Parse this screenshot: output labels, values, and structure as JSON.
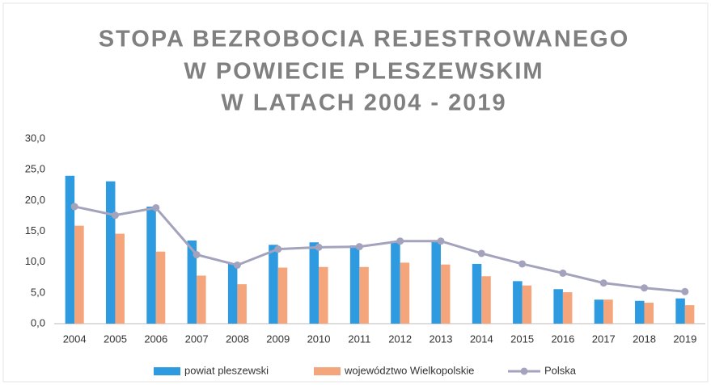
{
  "chart_data": {
    "type": "bar-line",
    "title": [
      "STOPA BEZROBOCIA REJESTROWANEGO",
      "W POWIECIE PLESZEWSKIM",
      "W LATACH 2004 - 2019"
    ],
    "categories": [
      "2004",
      "2005",
      "2006",
      "2007",
      "2008",
      "2009",
      "2010",
      "2011",
      "2012",
      "2013",
      "2014",
      "2015",
      "2016",
      "2017",
      "2018",
      "2019"
    ],
    "series": [
      {
        "name": "powiat pleszewski",
        "type": "bar",
        "color": "#2e9be0",
        "values": [
          24.0,
          23.1,
          19.0,
          13.5,
          9.8,
          12.8,
          13.2,
          12.7,
          13.4,
          13.5,
          9.7,
          6.9,
          5.6,
          3.9,
          3.7,
          4.1
        ]
      },
      {
        "name": "województwo Wielkopolskie",
        "type": "bar",
        "color": "#f4a57c",
        "values": [
          15.9,
          14.6,
          11.7,
          7.8,
          6.4,
          9.1,
          9.2,
          9.2,
          9.9,
          9.6,
          7.7,
          6.2,
          5.1,
          3.9,
          3.4,
          3.0
        ]
      },
      {
        "name": "Polska",
        "type": "line",
        "color": "#a3a3bd",
        "values": [
          19.0,
          17.6,
          18.8,
          11.2,
          9.5,
          12.1,
          12.4,
          12.5,
          13.4,
          13.4,
          11.4,
          9.7,
          8.2,
          6.6,
          5.8,
          5.2
        ]
      }
    ],
    "ylim": [
      0,
      30
    ],
    "yticks": [
      {
        "value": 0,
        "label": "0,0"
      },
      {
        "value": 5,
        "label": "5,0"
      },
      {
        "value": 10,
        "label": "10,0"
      },
      {
        "value": 15,
        "label": "15,0"
      },
      {
        "value": 20,
        "label": "20,0"
      },
      {
        "value": 25,
        "label": "25,0"
      },
      {
        "value": 30,
        "label": "30,0"
      }
    ],
    "grid": false,
    "legend": "bottom"
  }
}
